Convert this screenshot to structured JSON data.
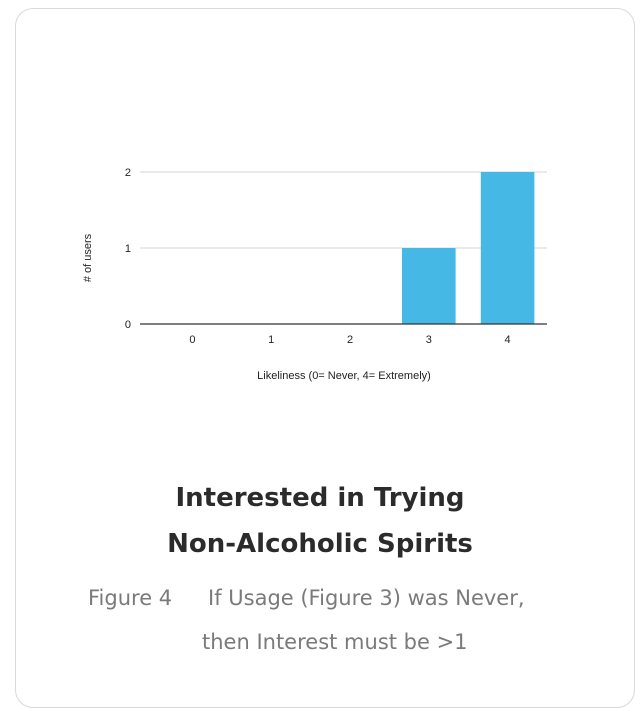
{
  "chart_data": {
    "type": "bar",
    "categories": [
      "0",
      "1",
      "2",
      "3",
      "4"
    ],
    "values": [
      0,
      0,
      0,
      1,
      2
    ],
    "xlabel": "Likeliness (0= Never, 4= Extremely)",
    "ylabel": "# of users",
    "ylim": [
      0,
      2
    ],
    "yticks": [
      "0",
      "1",
      "2"
    ],
    "grid": true,
    "bar_color": "#45b8e6"
  },
  "caption": {
    "title_line1": "Interested in Trying",
    "title_line2": "Non-Alcoholic Spirits",
    "figure_label": "Figure 4",
    "note_line1": "If Usage (Figure 3) was Never,",
    "note_line2": "then Interest must be >1"
  }
}
